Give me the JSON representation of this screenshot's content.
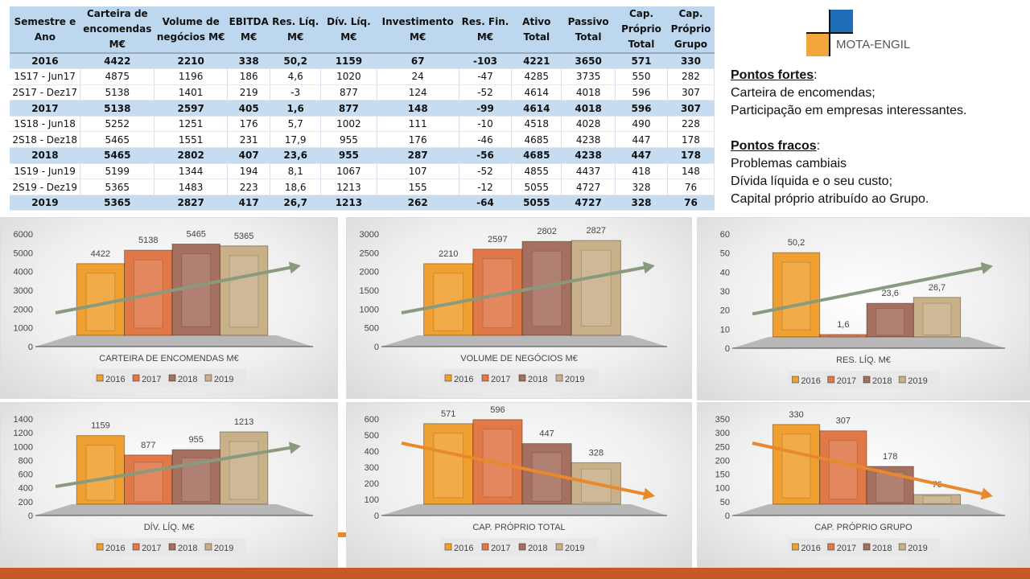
{
  "table": {
    "headers": [
      "Semestre e Ano",
      "Carteira de encomendas M€",
      "Volume de negócios M€",
      "EBITDA M€",
      "Res. Líq. M€",
      "Dív. Líq. M€",
      "Investimento M€",
      "Res. Fin. M€",
      "Ativo Total",
      "Passivo Total",
      "Cap. Próprio Total",
      "Cap. Próprio Grupo"
    ],
    "rows": [
      {
        "bold": true,
        "cells": [
          "2016",
          "4422",
          "2210",
          "338",
          "50,2",
          "1159",
          "67",
          "-103",
          "4221",
          "3650",
          "571",
          "330"
        ]
      },
      {
        "bold": false,
        "cells": [
          "1S17 - Jun17",
          "4875",
          "1196",
          "186",
          "4,6",
          "1020",
          "24",
          "-47",
          "4285",
          "3735",
          "550",
          "282"
        ]
      },
      {
        "bold": false,
        "cells": [
          "2S17 - Dez17",
          "5138",
          "1401",
          "219",
          "-3",
          "877",
          "124",
          "-52",
          "4614",
          "4018",
          "596",
          "307"
        ]
      },
      {
        "bold": true,
        "cells": [
          "2017",
          "5138",
          "2597",
          "405",
          "1,6",
          "877",
          "148",
          "-99",
          "4614",
          "4018",
          "596",
          "307"
        ]
      },
      {
        "bold": false,
        "cells": [
          "1S18 - Jun18",
          "5252",
          "1251",
          "176",
          "5,7",
          "1002",
          "111",
          "-10",
          "4518",
          "4028",
          "490",
          "228"
        ]
      },
      {
        "bold": false,
        "cells": [
          "2S18 - Dez18",
          "5465",
          "1551",
          "231",
          "17,9",
          "955",
          "176",
          "-46",
          "4685",
          "4238",
          "447",
          "178"
        ]
      },
      {
        "bold": true,
        "cells": [
          "2018",
          "5465",
          "2802",
          "407",
          "23,6",
          "955",
          "287",
          "-56",
          "4685",
          "4238",
          "447",
          "178"
        ]
      },
      {
        "bold": false,
        "cells": [
          "1S19 - Jun19",
          "5199",
          "1344",
          "194",
          "8,1",
          "1067",
          "107",
          "-52",
          "4855",
          "4437",
          "418",
          "148"
        ]
      },
      {
        "bold": false,
        "cells": [
          "2S19 - Dez19",
          "5365",
          "1483",
          "223",
          "18,6",
          "1213",
          "155",
          "-12",
          "5055",
          "4727",
          "328",
          "76"
        ]
      },
      {
        "bold": true,
        "cells": [
          "2019",
          "5365",
          "2827",
          "417",
          "26,7",
          "1213",
          "262",
          "-64",
          "5055",
          "4727",
          "328",
          "76"
        ]
      }
    ]
  },
  "logo": {
    "text": "MOTA-ENGIL",
    "colors": {
      "blue": "#1F6FB8",
      "orange": "#F5A63A"
    }
  },
  "notes": {
    "strengths_title": "Pontos fortes",
    "strengths": [
      "Carteira de encomendas;",
      "Participação em empresas interessantes."
    ],
    "weaknesses_title": "Pontos fracos",
    "weaknesses": [
      "Problemas cambiais",
      "Dívida líquida e o seu custo;",
      "Capital próprio atribuído ao Grupo."
    ]
  },
  "series_colors": {
    "2016": "#F0A030",
    "2017": "#E07848",
    "2018": "#A57060",
    "2019": "#C8B088"
  },
  "trend_colors": {
    "up": "#8A9A7E",
    "down": "#E8892C"
  },
  "chart_data": [
    {
      "type": "bar",
      "title": "CARTEIRA DE ENCOMENDAS M€",
      "categories": [
        "2016",
        "2017",
        "2018",
        "2019"
      ],
      "values": [
        4422,
        5138,
        5465,
        5365
      ],
      "labels": [
        "4422",
        "5138",
        "5465",
        "5365"
      ],
      "ylim": [
        0,
        6000
      ],
      "yticks": [
        0,
        1000,
        2000,
        3000,
        4000,
        5000,
        6000
      ],
      "legend": "bottom",
      "trend": "up"
    },
    {
      "type": "bar",
      "title": "VOLUME DE NEGÓCIOS M€",
      "categories": [
        "2016",
        "2017",
        "2018",
        "2019"
      ],
      "values": [
        2210,
        2597,
        2802,
        2827
      ],
      "labels": [
        "2210",
        "2597",
        "2802",
        "2827"
      ],
      "ylim": [
        0,
        3000
      ],
      "yticks": [
        0,
        500,
        1000,
        1500,
        2000,
        2500,
        3000
      ],
      "legend": "bottom",
      "trend": "up"
    },
    {
      "type": "bar",
      "title": "RES. LÍQ. M€",
      "categories": [
        "2016",
        "2017",
        "2018",
        "2019"
      ],
      "values": [
        50.2,
        1.6,
        23.6,
        26.7
      ],
      "labels": [
        "50,2",
        "1,6",
        "23,6",
        "26,7"
      ],
      "ylim": [
        0,
        60
      ],
      "yticks": [
        0,
        10,
        20,
        30,
        40,
        50,
        60
      ],
      "legend": "bottom",
      "trend": "up"
    },
    {
      "type": "bar",
      "title": "DÍV. LÍQ. M€",
      "categories": [
        "2016",
        "2017",
        "2018",
        "2019"
      ],
      "values": [
        1159,
        877,
        955,
        1213
      ],
      "labels": [
        "1159",
        "877",
        "955",
        "1213"
      ],
      "ylim": [
        0,
        1400
      ],
      "yticks": [
        0,
        200,
        400,
        600,
        800,
        1000,
        1200,
        1400
      ],
      "legend": "bottom",
      "trend": "up"
    },
    {
      "type": "bar",
      "title": "CAP. PRÓPRIO TOTAL",
      "categories": [
        "2016",
        "2017",
        "2018",
        "2019"
      ],
      "values": [
        571,
        596,
        447,
        328
      ],
      "labels": [
        "571",
        "596",
        "447",
        "328"
      ],
      "ylim": [
        0,
        600
      ],
      "yticks": [
        0,
        100,
        200,
        300,
        400,
        500,
        600
      ],
      "legend": "bottom",
      "trend": "down"
    },
    {
      "type": "bar",
      "title": "CAP. PRÓPRIO GRUPO",
      "categories": [
        "2016",
        "2017",
        "2018",
        "2019"
      ],
      "values": [
        330,
        307,
        178,
        76
      ],
      "labels": [
        "330",
        "307",
        "178",
        "76"
      ],
      "ylim": [
        0,
        350
      ],
      "yticks": [
        0,
        50,
        100,
        150,
        200,
        250,
        300,
        350
      ],
      "legend": "bottom",
      "trend": "down"
    }
  ]
}
